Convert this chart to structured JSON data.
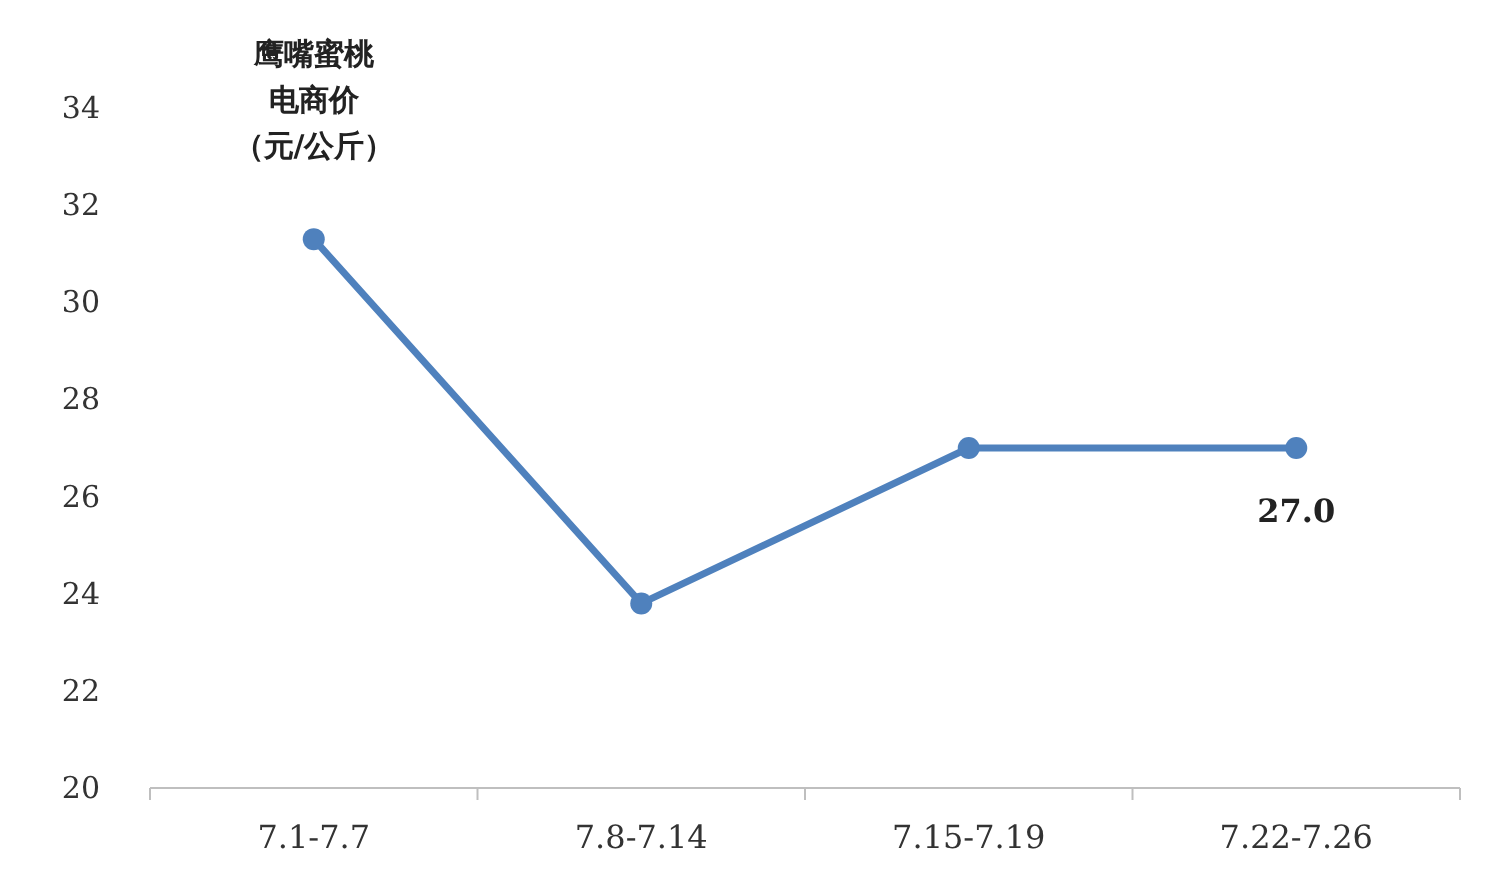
{
  "chart_data": {
    "type": "line",
    "ylabel": "鹰嘴蜜桃电商价（元/公斤）",
    "categories": [
      "7.1-7.7",
      "7.8-7.14",
      "7.15-7.19",
      "7.22-7.26"
    ],
    "series": [
      {
        "color": "#4f81bd",
        "values": [
          31.3,
          23.8,
          27.0,
          27.0
        ],
        "value_labels": [
          null,
          null,
          null,
          "27.0"
        ]
      }
    ],
    "ylim": [
      20,
      34
    ],
    "yticks": [
      20,
      22,
      24,
      26,
      28,
      30,
      32,
      34
    ],
    "marker": "circle",
    "line_style": "solid",
    "grid": false
  }
}
